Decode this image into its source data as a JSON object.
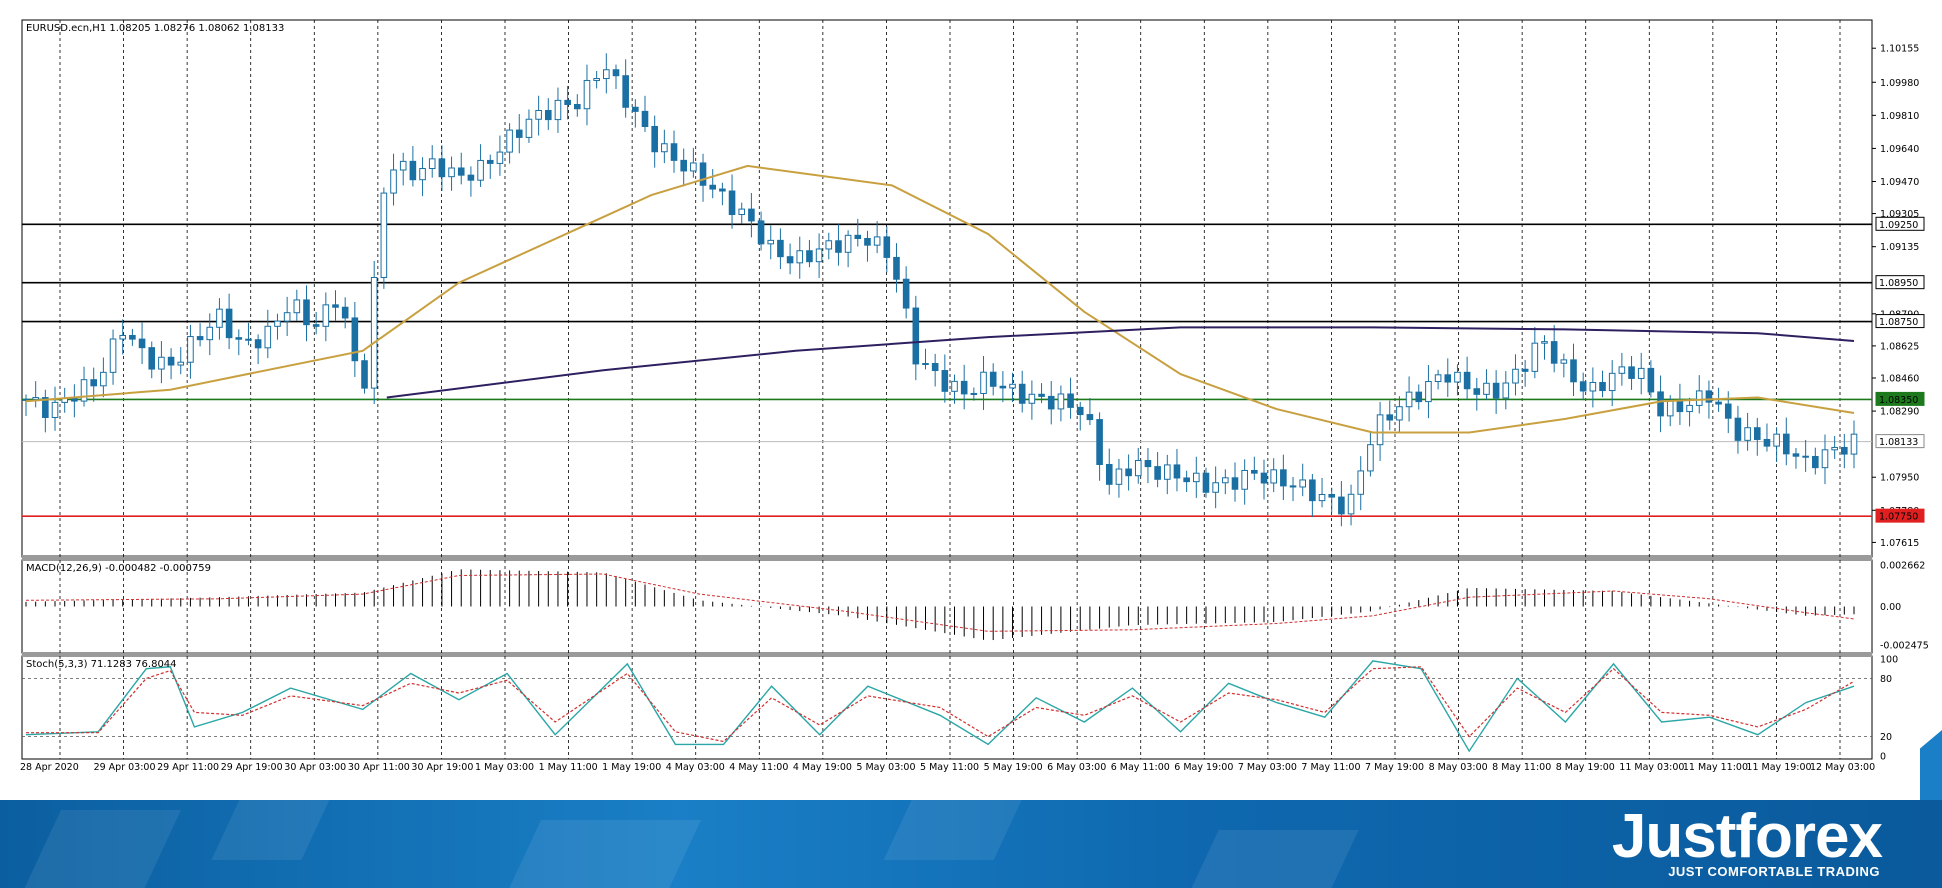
{
  "header": {
    "main_label": "EURUSD.ecn,H1  1.08205 1.08276 1.08062 1.08133",
    "macd_label": "MACD(12,26,9) -0.000482 -0.000759",
    "stoch_label": "Stoch(5,3,3) 71.1283 76.8044"
  },
  "brand": {
    "name": "Justforex",
    "tagline": "JUST COMFORTABLE TRADING"
  },
  "colors": {
    "candle": "#1a6fa3",
    "ma_fast": "#c8a040",
    "ma_slow": "#2e2060",
    "support_red": "#e02020",
    "level_green": "#1c7a1c",
    "macd_signal": "#d03030",
    "stoch_main": "#2aa6a6",
    "stoch_signal": "#d03030"
  },
  "chart_data": [
    {
      "type": "candlestick",
      "title": "EURUSD.ecn,H1",
      "ohlc_last": {
        "open": 1.08205,
        "high": 1.08276,
        "low": 1.08062,
        "close": 1.08133
      },
      "ylim": [
        1.0754,
        1.103
      ],
      "y_ticks": [
        1.10155,
        1.0998,
        1.0981,
        1.0964,
        1.0947,
        1.09305,
        1.09135,
        1.0879,
        1.08625,
        1.0846,
        1.0829,
        1.0795,
        1.0778,
        1.07615
      ],
      "x_ticks": [
        "28 Apr 2020",
        "29 Apr 03:00",
        "29 Apr 11:00",
        "29 Apr 19:00",
        "30 Apr 03:00",
        "30 Apr 11:00",
        "30 Apr 19:00",
        "1 May 03:00",
        "1 May 11:00",
        "1 May 19:00",
        "4 May 03:00",
        "4 May 11:00",
        "4 May 19:00",
        "5 May 03:00",
        "5 May 11:00",
        "5 May 19:00",
        "6 May 03:00",
        "6 May 11:00",
        "6 May 19:00",
        "7 May 03:00",
        "7 May 11:00",
        "7 May 19:00",
        "8 May 03:00",
        "8 May 11:00",
        "8 May 19:00",
        "11 May 03:00",
        "11 May 11:00",
        "11 May 19:00",
        "12 May 03:00"
      ],
      "levels": [
        {
          "value": 1.0925,
          "label": "1.09250",
          "color": "#000000"
        },
        {
          "value": 1.0895,
          "label": "1.08950",
          "color": "#000000"
        },
        {
          "value": 1.0875,
          "label": "1.08750",
          "color": "#000000"
        },
        {
          "value": 1.0835,
          "label": "1.08350",
          "color": "#1c7a1c"
        },
        {
          "value": 1.0775,
          "label": "1.07750",
          "color": "#e02020"
        }
      ],
      "current_price": {
        "value": 1.08133,
        "label": "1.08133"
      },
      "close_path": [
        [
          0,
          1.0835
        ],
        [
          1,
          1.0829
        ],
        [
          2,
          1.0838
        ],
        [
          3,
          1.0845
        ],
        [
          4,
          1.0872
        ],
        [
          5,
          1.0856
        ],
        [
          6,
          1.0852
        ],
        [
          7,
          1.0865
        ],
        [
          8,
          1.0878
        ],
        [
          9,
          1.0862
        ],
        [
          10,
          1.0868
        ],
        [
          11,
          1.0885
        ],
        [
          12,
          1.0872
        ],
        [
          13,
          1.0889
        ],
        [
          14,
          1.0836
        ],
        [
          15,
          1.0957
        ],
        [
          16,
          1.0951
        ],
        [
          17,
          1.0956
        ],
        [
          18,
          1.0949
        ],
        [
          19,
          1.0954
        ],
        [
          20,
          1.0968
        ],
        [
          21,
          1.0979
        ],
        [
          22,
          1.0985
        ],
        [
          23,
          1.0988
        ],
        [
          24,
          1.1008
        ],
        [
          25,
          1.0988
        ],
        [
          26,
          1.0968
        ],
        [
          27,
          1.0958
        ],
        [
          28,
          1.095
        ],
        [
          29,
          1.0938
        ],
        [
          30,
          1.0928
        ],
        [
          31,
          1.0912
        ],
        [
          32,
          1.0906
        ],
        [
          33,
          1.0912
        ],
        [
          34,
          1.0916
        ],
        [
          35,
          1.0918
        ],
        [
          36,
          1.0908
        ],
        [
          37,
          1.0857
        ],
        [
          38,
          1.0845
        ],
        [
          39,
          1.0838
        ],
        [
          40,
          1.0846
        ],
        [
          41,
          1.0839
        ],
        [
          42,
          1.0835
        ],
        [
          43,
          1.0834
        ],
        [
          44,
          1.0829
        ],
        [
          45,
          1.0791
        ],
        [
          46,
          1.0802
        ],
        [
          47,
          1.0798
        ],
        [
          48,
          1.0796
        ],
        [
          49,
          1.0791
        ],
        [
          50,
          1.0792
        ],
        [
          51,
          1.0797
        ],
        [
          52,
          1.0794
        ],
        [
          53,
          1.079
        ],
        [
          54,
          1.0784
        ],
        [
          55,
          1.0779
        ],
        [
          56,
          1.0819
        ],
        [
          57,
          1.0831
        ],
        [
          58,
          1.0839
        ],
        [
          59,
          1.0849
        ],
        [
          60,
          1.0841
        ],
        [
          61,
          1.0838
        ],
        [
          62,
          1.0848
        ],
        [
          63,
          1.0866
        ],
        [
          64,
          1.085
        ],
        [
          65,
          1.0838
        ],
        [
          66,
          1.0848
        ],
        [
          67,
          1.0851
        ],
        [
          68,
          1.0829
        ],
        [
          69,
          1.0832
        ],
        [
          70,
          1.0838
        ],
        [
          71,
          1.0819
        ],
        [
          72,
          1.0815
        ],
        [
          73,
          1.0812
        ],
        [
          74,
          1.0802
        ],
        [
          75,
          1.0808
        ],
        [
          76,
          1.0813
        ]
      ],
      "x_max": 76,
      "ma_fast_path": [
        [
          0,
          1.0834
        ],
        [
          6,
          1.084
        ],
        [
          14,
          1.086
        ],
        [
          18,
          1.0895
        ],
        [
          26,
          1.094
        ],
        [
          30,
          1.0955
        ],
        [
          36,
          1.0945
        ],
        [
          40,
          1.092
        ],
        [
          44,
          1.088
        ],
        [
          48,
          1.0848
        ],
        [
          52,
          1.083
        ],
        [
          56,
          1.0818
        ],
        [
          60,
          1.0818
        ],
        [
          64,
          1.0825
        ],
        [
          68,
          1.0834
        ],
        [
          72,
          1.0836
        ],
        [
          76,
          1.0828
        ]
      ],
      "ma_slow_path": [
        [
          15,
          1.0836
        ],
        [
          24,
          1.085
        ],
        [
          32,
          1.086
        ],
        [
          40,
          1.0867
        ],
        [
          48,
          1.0872
        ],
        [
          56,
          1.0872
        ],
        [
          64,
          1.0871
        ],
        [
          72,
          1.0869
        ],
        [
          76,
          1.0865
        ]
      ]
    },
    {
      "type": "bar",
      "title": "MACD(12,26,9)",
      "values_last": {
        "macd": -0.000482,
        "signal": -0.000759
      },
      "ylim": [
        -0.003,
        0.003
      ],
      "y_ticks": [
        0.002662,
        0.0,
        -0.002475
      ],
      "y_tick_labels": [
        "0.002662",
        "0.00",
        "-0.002475"
      ],
      "macd_path": [
        [
          0,
          0.0003
        ],
        [
          8,
          0.0006
        ],
        [
          14,
          0.0009
        ],
        [
          18,
          0.0024
        ],
        [
          24,
          0.0022
        ],
        [
          28,
          0.0004
        ],
        [
          34,
          -0.0006
        ],
        [
          40,
          -0.0022
        ],
        [
          46,
          -0.0012
        ],
        [
          52,
          -0.001
        ],
        [
          56,
          -0.0003
        ],
        [
          60,
          0.0012
        ],
        [
          66,
          0.001
        ],
        [
          70,
          0.0002
        ],
        [
          74,
          -0.0006
        ],
        [
          76,
          -0.0005
        ]
      ],
      "signal_path": [
        [
          0,
          0.0004
        ],
        [
          8,
          0.0005
        ],
        [
          14,
          0.0008
        ],
        [
          18,
          0.002
        ],
        [
          24,
          0.0021
        ],
        [
          28,
          0.0008
        ],
        [
          34,
          -0.0003
        ],
        [
          40,
          -0.0016
        ],
        [
          46,
          -0.0015
        ],
        [
          52,
          -0.0011
        ],
        [
          56,
          -0.0006
        ],
        [
          60,
          0.0006
        ],
        [
          66,
          0.001
        ],
        [
          70,
          0.0005
        ],
        [
          74,
          -0.0004
        ],
        [
          76,
          -0.0008
        ]
      ]
    },
    {
      "type": "line",
      "title": "Stoch(5,3,3)",
      "values_last": {
        "main": 71.1283,
        "signal": 76.8044
      },
      "ylim": [
        0,
        100
      ],
      "y_ticks": [
        100,
        80,
        20,
        0
      ],
      "main_path": [
        [
          0,
          22
        ],
        [
          3,
          25
        ],
        [
          5,
          90
        ],
        [
          6,
          92
        ],
        [
          7,
          30
        ],
        [
          9,
          45
        ],
        [
          11,
          70
        ],
        [
          14,
          48
        ],
        [
          16,
          85
        ],
        [
          18,
          58
        ],
        [
          20,
          85
        ],
        [
          22,
          22
        ],
        [
          25,
          95
        ],
        [
          27,
          12
        ],
        [
          29,
          12
        ],
        [
          31,
          72
        ],
        [
          33,
          22
        ],
        [
          35,
          72
        ],
        [
          38,
          42
        ],
        [
          40,
          12
        ],
        [
          42,
          60
        ],
        [
          44,
          35
        ],
        [
          46,
          70
        ],
        [
          48,
          25
        ],
        [
          50,
          75
        ],
        [
          52,
          55
        ],
        [
          54,
          40
        ],
        [
          56,
          98
        ],
        [
          58,
          90
        ],
        [
          60,
          5
        ],
        [
          62,
          80
        ],
        [
          64,
          35
        ],
        [
          66,
          95
        ],
        [
          68,
          35
        ],
        [
          70,
          40
        ],
        [
          72,
          22
        ],
        [
          74,
          55
        ],
        [
          76,
          72
        ]
      ],
      "signal_path": [
        [
          0,
          24
        ],
        [
          3,
          24
        ],
        [
          5,
          80
        ],
        [
          6,
          88
        ],
        [
          7,
          45
        ],
        [
          9,
          42
        ],
        [
          11,
          62
        ],
        [
          14,
          52
        ],
        [
          16,
          75
        ],
        [
          18,
          65
        ],
        [
          20,
          78
        ],
        [
          22,
          35
        ],
        [
          25,
          85
        ],
        [
          27,
          25
        ],
        [
          29,
          15
        ],
        [
          31,
          60
        ],
        [
          33,
          32
        ],
        [
          35,
          62
        ],
        [
          38,
          50
        ],
        [
          40,
          20
        ],
        [
          42,
          50
        ],
        [
          44,
          42
        ],
        [
          46,
          62
        ],
        [
          48,
          35
        ],
        [
          50,
          65
        ],
        [
          52,
          58
        ],
        [
          54,
          45
        ],
        [
          56,
          90
        ],
        [
          58,
          92
        ],
        [
          60,
          20
        ],
        [
          62,
          70
        ],
        [
          64,
          45
        ],
        [
          66,
          90
        ],
        [
          68,
          45
        ],
        [
          70,
          42
        ],
        [
          72,
          30
        ],
        [
          74,
          48
        ],
        [
          76,
          77
        ]
      ]
    }
  ]
}
